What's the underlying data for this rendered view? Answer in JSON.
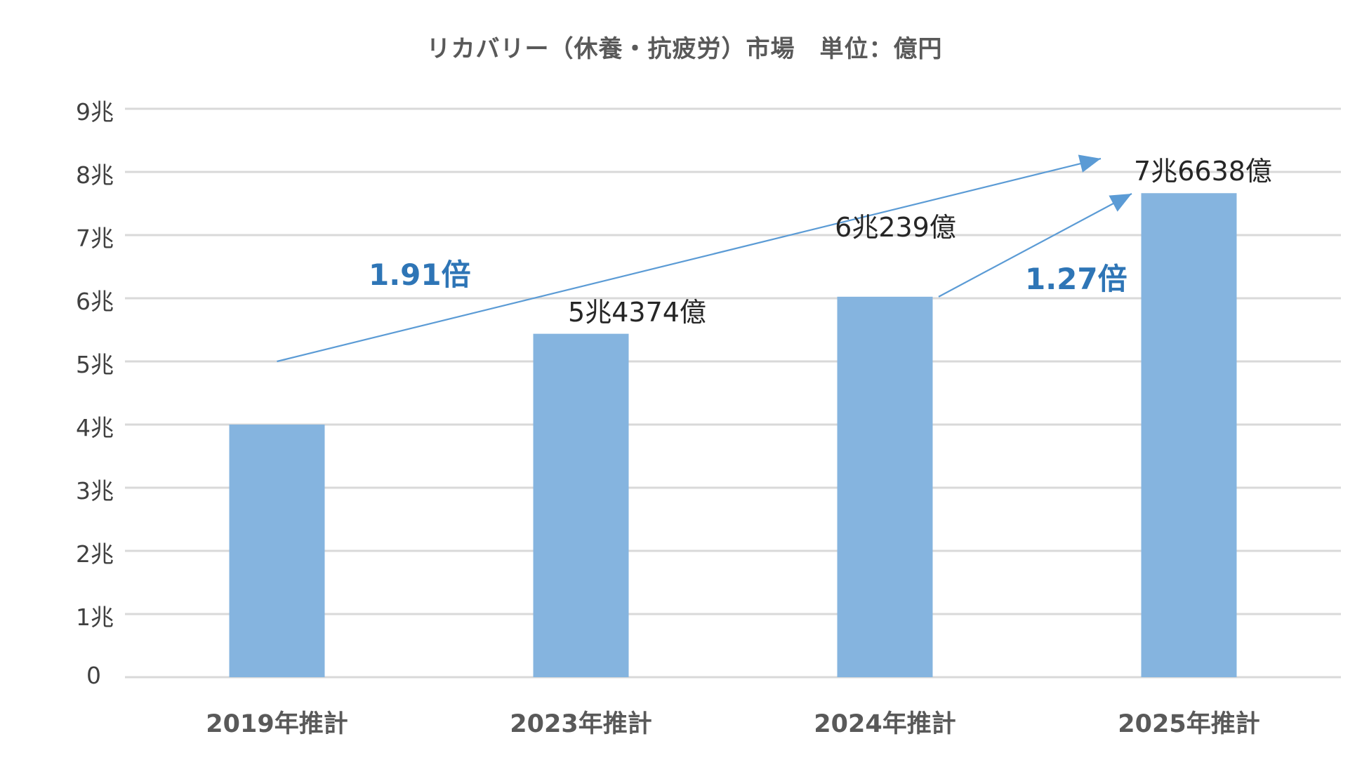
{
  "chart_data": {
    "type": "bar",
    "title": "リカバリー（休養・抗疲労）市場　単位：億円",
    "xlabel": "",
    "ylabel": "",
    "categories": [
      "2019年推計",
      "2023年推計",
      "2024年推計",
      "2025年推計"
    ],
    "values": [
      40000,
      54374,
      60239,
      76638
    ],
    "value_labels": [
      "",
      "5兆4374億",
      "6兆239億",
      "7兆6638億"
    ],
    "unit": "億円",
    "ylim": [
      0,
      90000
    ],
    "yticks": [
      0,
      10000,
      20000,
      30000,
      40000,
      50000,
      60000,
      70000,
      80000,
      90000
    ],
    "ytick_labels": [
      "0",
      "1兆",
      "2兆",
      "3兆",
      "4兆",
      "5兆",
      "6兆",
      "7兆",
      "8兆",
      "9兆"
    ],
    "grid": true,
    "legend": "none",
    "bar_color": "#85B4DF",
    "annotations": [
      {
        "text": "1.91倍",
        "from": "2019年推計",
        "to": "2025年推計",
        "color": "#2E75B6"
      },
      {
        "text": "1.27倍",
        "from": "2024年推計",
        "to": "2025年推計",
        "color": "#2E75B6"
      }
    ]
  },
  "colors": {
    "bar": "#85B4DF",
    "grid": "#D9D9D9",
    "arrow": "#5B9BD5",
    "ratio_text": "#2E75B6",
    "title_text": "#595959",
    "axis_text": "#404040"
  }
}
